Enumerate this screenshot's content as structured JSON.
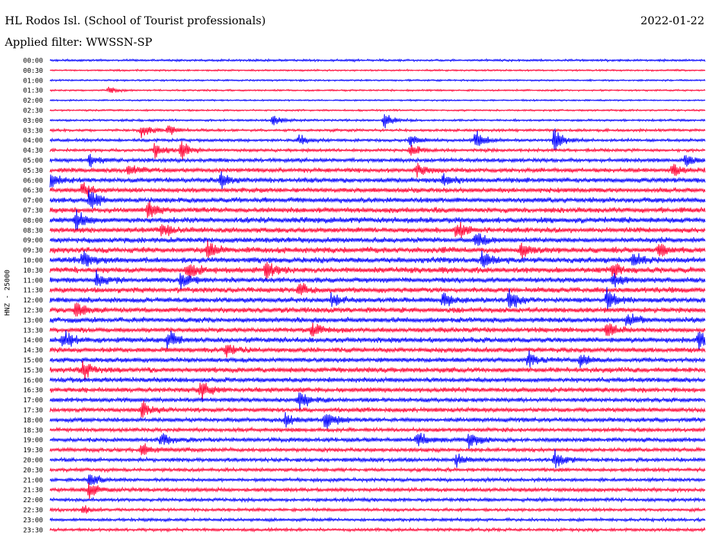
{
  "header": {
    "station": "HL Rodos Isl. (School of Tourist professionals)",
    "date": "2022-01-22",
    "filter": "Applied filter: WWSSN-SP"
  },
  "chart_data": {
    "type": "line",
    "title": "HL Rodos Isl. (School of Tourist professionals)",
    "subtitle": "Applied filter: WWSSN-SP",
    "ylabel": "HNZ - 25000",
    "colors": [
      "#0000ff",
      "#ff0033"
    ],
    "rows": [
      "00:00",
      "00:30",
      "01:00",
      "01:30",
      "02:00",
      "02:30",
      "03:00",
      "03:30",
      "04:00",
      "04:30",
      "05:00",
      "05:30",
      "06:00",
      "06:30",
      "07:00",
      "07:30",
      "08:00",
      "08:30",
      "09:00",
      "09:30",
      "10:00",
      "10:30",
      "11:00",
      "11:30",
      "12:00",
      "12:30",
      "13:00",
      "13:30",
      "14:00",
      "14:30",
      "15:00",
      "15:30",
      "16:00",
      "16:30",
      "17:00",
      "17:30",
      "18:00",
      "18:30",
      "19:00",
      "19:30",
      "20:00",
      "20:30",
      "21:00",
      "21:30",
      "22:00",
      "22:30",
      "23:00",
      "23:30"
    ],
    "noise_level": [
      0.25,
      0.2,
      0.2,
      0.2,
      0.18,
      0.2,
      0.25,
      0.3,
      0.35,
      0.35,
      0.45,
      0.5,
      0.55,
      0.55,
      0.6,
      0.6,
      0.65,
      0.6,
      0.6,
      0.65,
      0.65,
      0.65,
      0.6,
      0.6,
      0.6,
      0.6,
      0.6,
      0.55,
      0.6,
      0.55,
      0.55,
      0.6,
      0.55,
      0.55,
      0.5,
      0.5,
      0.5,
      0.45,
      0.5,
      0.45,
      0.45,
      0.4,
      0.4,
      0.45,
      0.4,
      0.35,
      0.35,
      0.35
    ],
    "events": [
      {
        "row": 3,
        "t": 0.09,
        "amp": 0.5
      },
      {
        "row": 6,
        "t": 0.34,
        "amp": 0.9
      },
      {
        "row": 6,
        "t": 0.51,
        "amp": 1.1
      },
      {
        "row": 7,
        "t": 0.14,
        "amp": 1.1
      },
      {
        "row": 7,
        "t": 0.18,
        "amp": 1.0
      },
      {
        "row": 8,
        "t": 0.38,
        "amp": 0.8
      },
      {
        "row": 8,
        "t": 0.55,
        "amp": 1.0
      },
      {
        "row": 8,
        "t": 0.65,
        "amp": 1.6
      },
      {
        "row": 8,
        "t": 0.77,
        "amp": 1.9
      },
      {
        "row": 9,
        "t": 0.16,
        "amp": 1.2
      },
      {
        "row": 9,
        "t": 0.2,
        "amp": 1.4
      },
      {
        "row": 9,
        "t": 0.55,
        "amp": 1.3
      },
      {
        "row": 10,
        "t": 0.06,
        "amp": 1.2
      },
      {
        "row": 10,
        "t": 0.97,
        "amp": 1.3
      },
      {
        "row": 11,
        "t": 0.12,
        "amp": 1.0
      },
      {
        "row": 11,
        "t": 0.56,
        "amp": 1.2
      },
      {
        "row": 11,
        "t": 0.95,
        "amp": 1.1
      },
      {
        "row": 12,
        "t": 0.0,
        "amp": 1.3
      },
      {
        "row": 12,
        "t": 0.26,
        "amp": 1.3
      },
      {
        "row": 12,
        "t": 0.6,
        "amp": 1.0
      },
      {
        "row": 13,
        "t": 0.05,
        "amp": 1.2
      },
      {
        "row": 14,
        "t": 0.06,
        "amp": 1.6
      },
      {
        "row": 15,
        "t": 0.15,
        "amp": 1.3
      },
      {
        "row": 16,
        "t": 0.04,
        "amp": 1.7
      },
      {
        "row": 17,
        "t": 0.17,
        "amp": 1.3
      },
      {
        "row": 17,
        "t": 0.62,
        "amp": 1.4
      },
      {
        "row": 18,
        "t": 0.65,
        "amp": 1.4
      },
      {
        "row": 19,
        "t": 0.24,
        "amp": 1.6
      },
      {
        "row": 19,
        "t": 0.72,
        "amp": 1.2
      },
      {
        "row": 19,
        "t": 0.93,
        "amp": 1.2
      },
      {
        "row": 20,
        "t": 0.05,
        "amp": 1.6
      },
      {
        "row": 20,
        "t": 0.66,
        "amp": 1.5
      },
      {
        "row": 20,
        "t": 0.89,
        "amp": 1.3
      },
      {
        "row": 21,
        "t": 0.21,
        "amp": 1.3
      },
      {
        "row": 21,
        "t": 0.33,
        "amp": 1.5
      },
      {
        "row": 21,
        "t": 0.86,
        "amp": 1.3
      },
      {
        "row": 22,
        "t": 0.07,
        "amp": 1.4
      },
      {
        "row": 22,
        "t": 0.2,
        "amp": 1.3
      },
      {
        "row": 22,
        "t": 0.86,
        "amp": 1.4
      },
      {
        "row": 23,
        "t": 0.38,
        "amp": 1.1
      },
      {
        "row": 24,
        "t": 0.43,
        "amp": 1.0
      },
      {
        "row": 24,
        "t": 0.6,
        "amp": 1.3
      },
      {
        "row": 24,
        "t": 0.7,
        "amp": 1.6
      },
      {
        "row": 24,
        "t": 0.85,
        "amp": 1.6
      },
      {
        "row": 25,
        "t": 0.04,
        "amp": 1.3
      },
      {
        "row": 26,
        "t": 0.88,
        "amp": 1.2
      },
      {
        "row": 27,
        "t": 0.4,
        "amp": 1.1
      },
      {
        "row": 27,
        "t": 0.85,
        "amp": 1.2
      },
      {
        "row": 28,
        "t": 0.02,
        "amp": 1.6
      },
      {
        "row": 28,
        "t": 0.18,
        "amp": 1.4
      },
      {
        "row": 28,
        "t": 0.99,
        "amp": 1.8
      },
      {
        "row": 29,
        "t": 0.27,
        "amp": 1.1
      },
      {
        "row": 30,
        "t": 0.73,
        "amp": 1.3
      },
      {
        "row": 30,
        "t": 0.81,
        "amp": 1.1
      },
      {
        "row": 31,
        "t": 0.05,
        "amp": 1.4
      },
      {
        "row": 33,
        "t": 0.23,
        "amp": 1.6
      },
      {
        "row": 34,
        "t": 0.38,
        "amp": 1.5
      },
      {
        "row": 35,
        "t": 0.14,
        "amp": 1.3
      },
      {
        "row": 36,
        "t": 0.36,
        "amp": 1.1
      },
      {
        "row": 36,
        "t": 0.42,
        "amp": 1.6
      },
      {
        "row": 38,
        "t": 0.17,
        "amp": 1.1
      },
      {
        "row": 38,
        "t": 0.56,
        "amp": 1.5
      },
      {
        "row": 38,
        "t": 0.64,
        "amp": 1.7
      },
      {
        "row": 39,
        "t": 0.14,
        "amp": 1.0
      },
      {
        "row": 40,
        "t": 0.62,
        "amp": 1.0
      },
      {
        "row": 40,
        "t": 0.77,
        "amp": 1.6
      },
      {
        "row": 42,
        "t": 0.06,
        "amp": 1.2
      },
      {
        "row": 43,
        "t": 0.06,
        "amp": 1.6
      },
      {
        "row": 45,
        "t": 0.05,
        "amp": 0.7
      }
    ]
  }
}
